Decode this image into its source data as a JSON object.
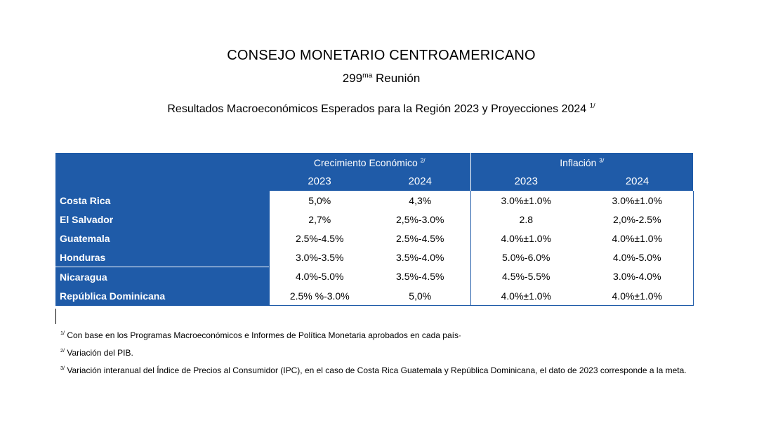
{
  "header": {
    "title": "CONSEJO MONETARIO CENTROAMERICANO",
    "meeting_number": "299",
    "meeting_suffix": "ma",
    "meeting_label": " Reunión",
    "subtitle": "Resultados Macroeconómicos Esperados para la Región 2023 y Proyecciones 2024 ",
    "subtitle_note": "1/"
  },
  "table": {
    "groups": [
      {
        "label": "Crecimiento Económico ",
        "note": "2/"
      },
      {
        "label": "Inflación ",
        "note": "3/"
      }
    ],
    "years": [
      "2023",
      "2024",
      "2023",
      "2024"
    ],
    "rows": [
      {
        "country": "Costa Rica",
        "values": [
          "5,0%",
          "4,3%",
          "3.0%±1.0%",
          "3.0%±1.0%"
        ]
      },
      {
        "country": "El Salvador",
        "values": [
          "2,7%",
          "2,5%-3.0%",
          "2.8",
          "2,0%-2.5%"
        ]
      },
      {
        "country": "Guatemala",
        "values": [
          "2.5%-4.5%",
          "2.5%-4.5%",
          "4.0%±1.0%",
          "4.0%±1.0%"
        ]
      },
      {
        "country": "Honduras",
        "values": [
          "3.0%-3.5%",
          "3.5%-4.0%",
          "5.0%-6.0%",
          "4.0%-5.0%"
        ]
      },
      {
        "country": "Nicaragua",
        "values": [
          "4.0%-5.0%",
          "3.5%-4.5%",
          "4.5%-5.5%",
          "3.0%-4.0%"
        ]
      },
      {
        "country": "República Dominicana",
        "values": [
          "2.5% %-3.0%",
          "5,0%",
          "4.0%±1.0%",
          "4.0%±1.0%"
        ]
      }
    ]
  },
  "notes": [
    {
      "mark": "1/",
      "text": " Con base en los Programas Macroeconómicos e Informes de Política Monetaria aprobados en cada país·"
    },
    {
      "mark": "2/",
      "text": " Variación del PIB."
    },
    {
      "mark": "3/",
      "text": " Variación interanual del Índice de Precios al Consumidor (IPC), en el caso de Costa Rica Guatemala y República Dominicana, el dato de 2023 corresponde a la meta."
    }
  ],
  "colors": {
    "table_blue": "#1f5ba8",
    "text": "#000000"
  }
}
